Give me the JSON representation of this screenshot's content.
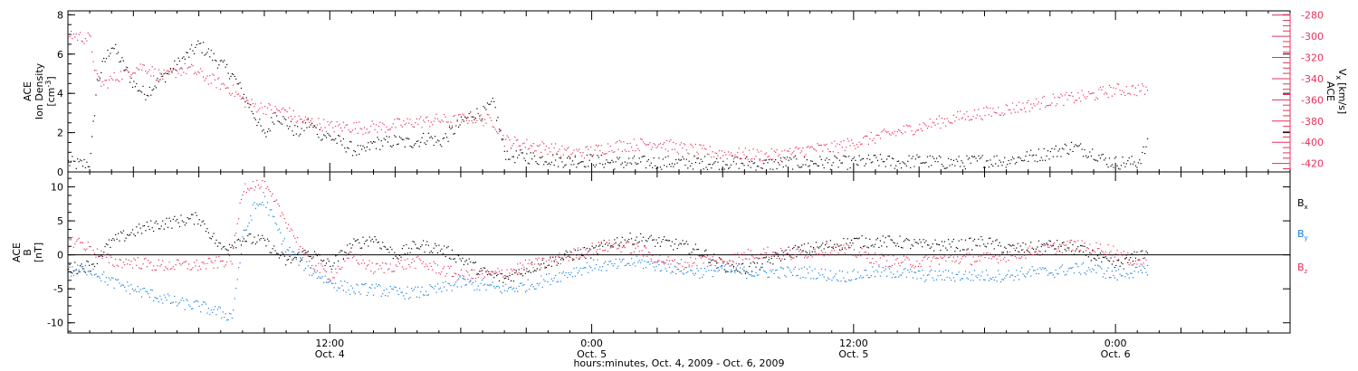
{
  "colors": {
    "black": "#000000",
    "pink": "#e8305a",
    "blue": "#1a7fe0"
  },
  "footer": {
    "title": "hours:minutes, Oct.  4, 2009 - Oct.  6, 2009"
  },
  "time_axis": {
    "ticks": [
      {
        "time": "12:00",
        "date": "Oct. 4"
      },
      {
        "time": "0:00",
        "date": "Oct. 5"
      },
      {
        "time": "12:00",
        "date": "Oct. 5"
      },
      {
        "time": "0:00",
        "date": "Oct. 6"
      }
    ]
  },
  "chart_data": [
    {
      "type": "scatter",
      "panel": "top",
      "left_axis": {
        "label_lines": [
          "ACE",
          "Ion Density"
        ],
        "unit": "[cm",
        "unit_sup": "-3",
        "unit_tail": "]",
        "ylim": [
          0,
          8.2
        ],
        "ticks": [
          0,
          2,
          4,
          6,
          8
        ],
        "tick_labels": [
          "0",
          "2",
          "4",
          "6",
          "8"
        ]
      },
      "right_axis": {
        "label": "ACE",
        "sub_label": "V",
        "sub_label_sub": "x",
        "unit": "[km/s]",
        "ylim": [
          -428,
          -276
        ],
        "ticks": [
          -280,
          -300,
          -320,
          -340,
          -360,
          -380,
          -400,
          -420
        ],
        "tick_labels": [
          "-280",
          "-300",
          "-320",
          "-340",
          "-360",
          "-380",
          "-400",
          "-420"
        ]
      },
      "xlim_hours": [
        0,
        56
      ],
      "series": [
        {
          "axis": "left",
          "color": "#000000",
          "x_hours": [
            0,
            0.5,
            1.0,
            1.3,
            1.6,
            2,
            2.5,
            3,
            3.5,
            4,
            4.5,
            5,
            5.5,
            6,
            6.5,
            7,
            7.5,
            8,
            8.5,
            9,
            9.5,
            10,
            10.5,
            11,
            11.5,
            12,
            12.5,
            13,
            13.5,
            14,
            14.5,
            15,
            15.5,
            16,
            16.5,
            17,
            17.5,
            18,
            18.5,
            19,
            19.5,
            20,
            20.5,
            21,
            21.5,
            22,
            22.5,
            23,
            23.5,
            24,
            25,
            26,
            27,
            28,
            29,
            30,
            31,
            32,
            33,
            34,
            35,
            36,
            37,
            38,
            39,
            40,
            41,
            42,
            43,
            44,
            45,
            46,
            47,
            47.5,
            48,
            48.5,
            49,
            49.5
          ],
          "y": [
            0.5,
            0.4,
            0.5,
            4.5,
            5.5,
            6.5,
            5.5,
            4.5,
            4.0,
            4.5,
            5.0,
            5.5,
            6.0,
            6.5,
            6.0,
            5.5,
            5.0,
            4.0,
            3.0,
            1.8,
            3.0,
            2.5,
            2.0,
            2.5,
            2.0,
            1.8,
            1.5,
            1.2,
            1.0,
            1.5,
            1.5,
            1.6,
            1.5,
            1.6,
            1.8,
            1.5,
            2.0,
            2.5,
            3.0,
            3.0,
            3.5,
            1.0,
            0.8,
            0.8,
            0.7,
            0.7,
            0.6,
            0.6,
            0.6,
            0.6,
            0.5,
            0.5,
            0.5,
            0.5,
            0.5,
            0.5,
            0.5,
            0.4,
            0.5,
            0.5,
            0.5,
            0.5,
            0.6,
            0.5,
            0.6,
            0.5,
            0.5,
            0.6,
            0.6,
            0.8,
            1.0,
            1.3,
            1.0,
            0.6,
            0.5,
            0.5,
            0.5,
            1.5
          ]
        },
        {
          "axis": "right",
          "color": "#e8305a",
          "x_hours": [
            0,
            0.5,
            1,
            1.3,
            1.6,
            2,
            2.5,
            3,
            3.5,
            4,
            4.5,
            5,
            5.5,
            6,
            6.5,
            7,
            7.5,
            8,
            8.5,
            9,
            9.5,
            10,
            10.5,
            11,
            11.5,
            12,
            12.5,
            13,
            13.5,
            14,
            14.5,
            15,
            15.5,
            16,
            16.5,
            17,
            17.5,
            18,
            18.5,
            19,
            19.5,
            20,
            21,
            22,
            23,
            24,
            25,
            26,
            27,
            28,
            29,
            30,
            31,
            32,
            33,
            34,
            35,
            36,
            37,
            38,
            39,
            40,
            41,
            42,
            43,
            44,
            45,
            46,
            47,
            47.5,
            48,
            48.5,
            49,
            49.5
          ],
          "y": [
            -297,
            -300,
            -302,
            -340,
            -345,
            -340,
            -335,
            -330,
            -328,
            -335,
            -338,
            -332,
            -330,
            -335,
            -340,
            -345,
            -350,
            -360,
            -365,
            -367,
            -370,
            -370,
            -378,
            -380,
            -382,
            -385,
            -385,
            -385,
            -386,
            -385,
            -385,
            -383,
            -382,
            -380,
            -380,
            -378,
            -380,
            -378,
            -376,
            -378,
            -380,
            -398,
            -402,
            -405,
            -410,
            -408,
            -403,
            -402,
            -400,
            -405,
            -408,
            -410,
            -411,
            -412,
            -410,
            -406,
            -405,
            -400,
            -395,
            -390,
            -385,
            -380,
            -375,
            -372,
            -368,
            -365,
            -360,
            -358,
            -355,
            -352,
            -350,
            -350,
            -350,
            -350
          ]
        }
      ]
    },
    {
      "type": "scatter",
      "panel": "bottom",
      "left_axis": {
        "label_lines": [
          "ACE",
          "B"
        ],
        "unit": "[nT]",
        "ylim": [
          -11.5,
          12.2
        ],
        "ticks": [
          10,
          5,
          0,
          -5,
          -10
        ],
        "tick_labels": [
          "10",
          "5",
          "0",
          "-5",
          "-10"
        ]
      },
      "xlim_hours": [
        0,
        56
      ],
      "zero_line": true,
      "series": [
        {
          "name": "B",
          "sub": "x",
          "color": "#000000",
          "x_hours": [
            0,
            1,
            2,
            3,
            4,
            5,
            6,
            7,
            8,
            9,
            10,
            11,
            12,
            13,
            14,
            15,
            16,
            17,
            18,
            19,
            20,
            21,
            22,
            23,
            24,
            25,
            26,
            27,
            28,
            29,
            30,
            31,
            32,
            33,
            34,
            35,
            36,
            37,
            38,
            39,
            40,
            41,
            42,
            43,
            44,
            45,
            46,
            47,
            47.5,
            48,
            48.5,
            49,
            49.5
          ],
          "y": [
            -2,
            -1.5,
            2,
            3.5,
            4.5,
            5,
            5.5,
            1,
            2.5,
            2,
            -1,
            0.5,
            -1.5,
            1.5,
            2.5,
            0,
            1.5,
            1,
            -0.5,
            -2.5,
            -3.5,
            -2,
            -1,
            0,
            0.5,
            2,
            2.5,
            2,
            1.5,
            0.5,
            -1.5,
            -2,
            -1,
            0.5,
            1,
            1.5,
            2,
            2,
            2,
            1.5,
            1.5,
            1.5,
            2,
            1,
            1,
            1.5,
            1,
            0,
            -1,
            -1.5,
            -1,
            0,
            0.5
          ]
        },
        {
          "name": "B",
          "sub": "y",
          "color": "#1a7fe0",
          "x_hours": [
            0,
            1,
            2,
            3,
            4,
            5,
            6,
            7,
            7.5,
            8,
            8.5,
            9,
            10,
            11,
            12,
            13,
            14,
            15,
            16,
            17,
            18,
            19,
            20,
            21,
            22,
            23,
            24,
            25,
            26,
            27,
            28,
            29,
            30,
            31,
            32,
            33,
            34,
            35,
            36,
            37,
            38,
            39,
            40,
            41,
            42,
            43,
            44,
            45,
            46,
            47,
            47.5,
            48,
            48.5,
            49,
            49.5
          ],
          "y": [
            -2.5,
            -2,
            -4,
            -5,
            -6,
            -7,
            -7.5,
            -8.5,
            -9,
            2.5,
            7,
            8,
            1,
            -2,
            -4,
            -5,
            -5,
            -5.5,
            -5.5,
            -5,
            -4,
            -4.5,
            -5,
            -4.5,
            -3.5,
            -2.5,
            -1.5,
            -1.5,
            -1,
            -1.5,
            -2,
            -2.5,
            -2,
            -2.5,
            -2.5,
            -2.5,
            -2.5,
            -3,
            -3,
            -2.5,
            -2.5,
            -3,
            -3,
            -3,
            -3,
            -3,
            -2.5,
            -2.5,
            -2,
            -2,
            -2.5,
            -3,
            -2.5,
            -2.5,
            -2.5
          ]
        },
        {
          "name": "B",
          "sub": "z",
          "color": "#e8305a",
          "x_hours": [
            0,
            0.5,
            1,
            2,
            3,
            4,
            5,
            6,
            7,
            7.5,
            8,
            8.5,
            9,
            10,
            11,
            12,
            13,
            14,
            15,
            16,
            17,
            18,
            19,
            20,
            21,
            22,
            23,
            24,
            25,
            26,
            27,
            28,
            29,
            30,
            31,
            32,
            33,
            34,
            35,
            36,
            37,
            38,
            39,
            40,
            41,
            42,
            43,
            44,
            45,
            46,
            47,
            47.5,
            48,
            48.5,
            49,
            49.5
          ],
          "y": [
            2,
            2,
            1,
            -1,
            -1,
            -1.5,
            -1.5,
            -1.5,
            -1,
            -0.5,
            10,
            10.5,
            10,
            5,
            -1,
            -3,
            0,
            -2,
            -1.5,
            -1,
            -2,
            -3,
            -3,
            -2.5,
            -1.5,
            -1,
            0,
            1,
            1.5,
            1,
            -0.5,
            -1.5,
            -0.5,
            -1,
            0,
            0.5,
            0,
            0.5,
            1,
            0.5,
            -0.5,
            -1,
            -1,
            -0.5,
            -0.5,
            -0.5,
            0,
            0.5,
            1,
            1.5,
            1,
            1,
            0.5,
            -0.5,
            -1,
            -1
          ]
        }
      ]
    }
  ]
}
